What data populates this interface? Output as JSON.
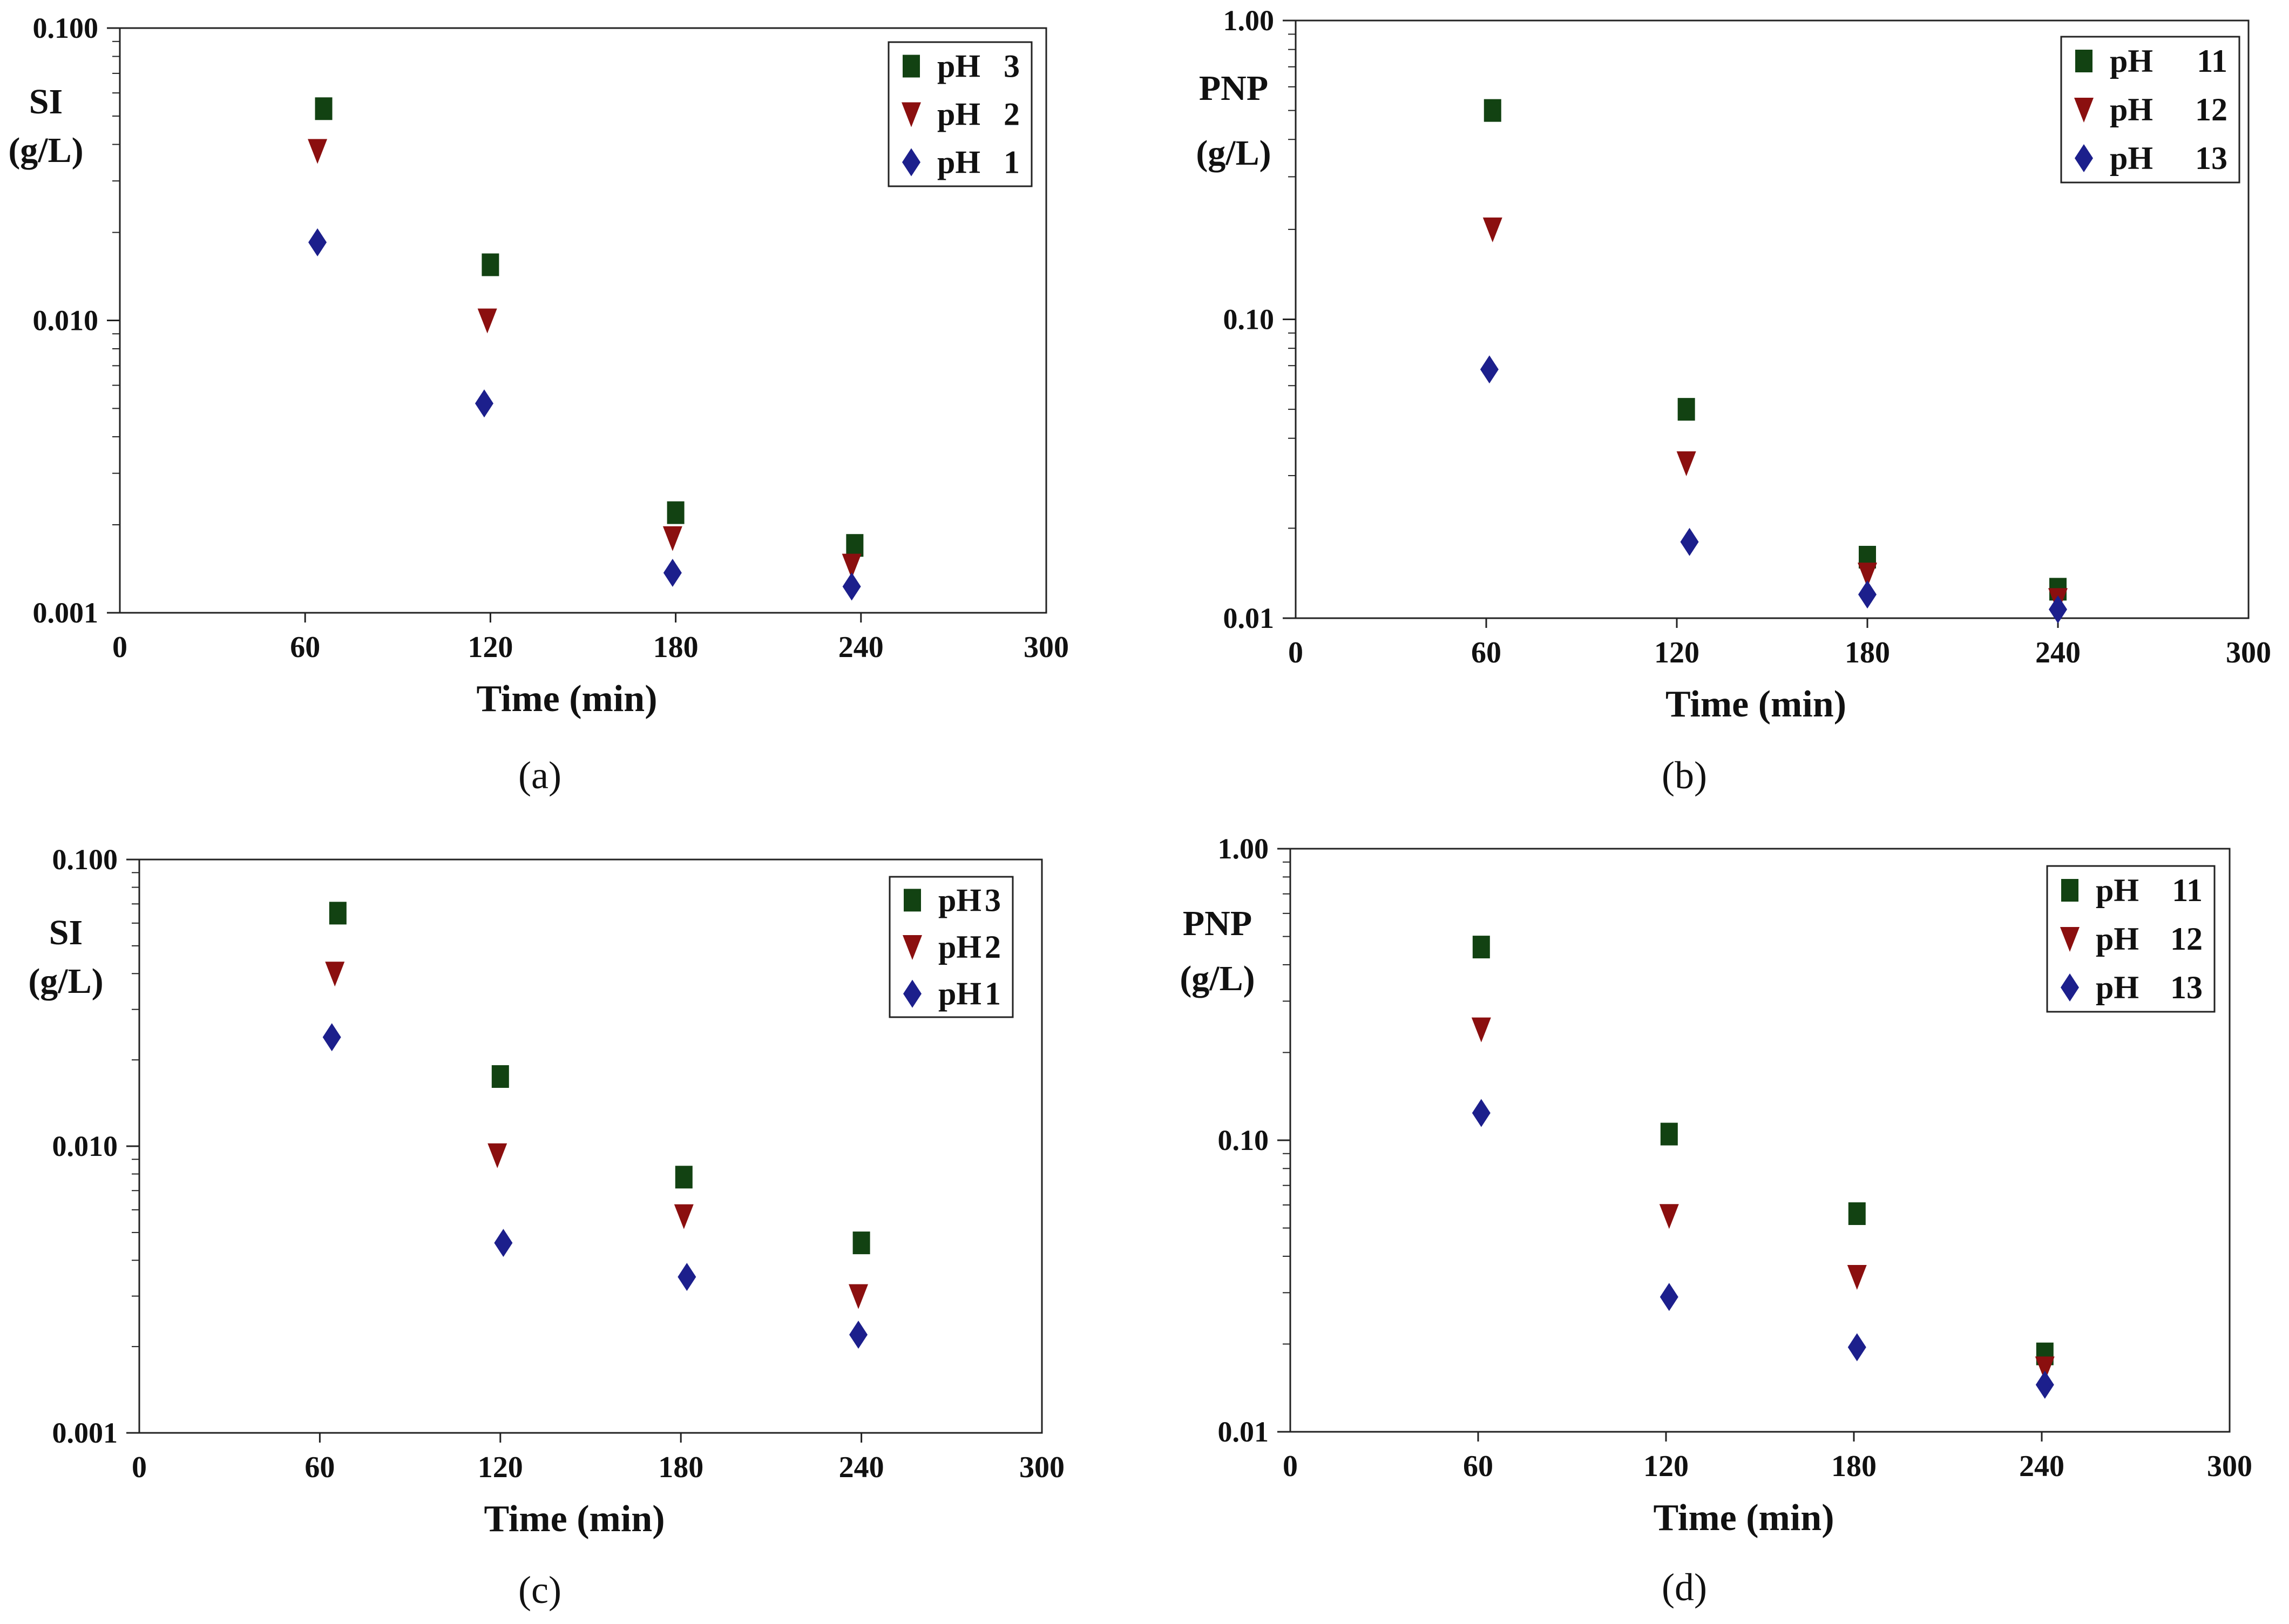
{
  "figure": {
    "captions": [
      "(a)",
      "(b)",
      "(c)",
      "(d)"
    ]
  },
  "colors": {
    "square": "#124212",
    "triangle": "#8b0f0f",
    "diamond": "#1c1f8c"
  },
  "chart_data": [
    {
      "id": "a",
      "type": "scatter",
      "caption": "(a)",
      "xlabel": "Time (min)",
      "ylabel_lines": [
        "SI",
        "(g/L)"
      ],
      "yscale": "log",
      "ylim": [
        0.001,
        0.1
      ],
      "xlim": [
        0,
        300
      ],
      "x_ticks": [
        "0",
        "60",
        "120",
        "180",
        "240",
        "300"
      ],
      "y_ticks": [
        {
          "value": 0.1,
          "label": "0.100"
        },
        {
          "value": 0.01,
          "label": "0.010"
        },
        {
          "value": 0.001,
          "label": "0.001"
        }
      ],
      "legend": [
        {
          "pH": "pH",
          "value": "3",
          "marker": "square"
        },
        {
          "pH": "pH",
          "value": "2",
          "marker": "triangle"
        },
        {
          "pH": "pH",
          "value": "1",
          "marker": "diamond"
        }
      ],
      "series": [
        {
          "name": "pH 3",
          "marker": "square",
          "x": [
            66,
            120,
            180,
            238
          ],
          "y": [
            0.053,
            0.0155,
            0.0022,
            0.0017
          ]
        },
        {
          "name": "pH 2",
          "marker": "triangle",
          "x": [
            64,
            119,
            179,
            237
          ],
          "y": [
            0.038,
            0.01,
            0.0018,
            0.00145
          ]
        },
        {
          "name": "pH 1",
          "marker": "diamond",
          "x": [
            64,
            118,
            179,
            237
          ],
          "y": [
            0.0185,
            0.0052,
            0.00137,
            0.00123
          ]
        }
      ]
    },
    {
      "id": "b",
      "type": "scatter",
      "caption": "(b)",
      "xlabel": "Time (min)",
      "ylabel_lines": [
        "PNP",
        "(g/L)"
      ],
      "yscale": "log",
      "ylim": [
        0.01,
        1.0
      ],
      "xlim": [
        0,
        300
      ],
      "x_ticks": [
        "0",
        "60",
        "120",
        "180",
        "240",
        "300"
      ],
      "y_ticks": [
        {
          "value": 1.0,
          "label": "1.00"
        },
        {
          "value": 0.1,
          "label": "0.10"
        },
        {
          "value": 0.01,
          "label": "0.01"
        }
      ],
      "legend": [
        {
          "pH": "pH",
          "value": "11",
          "marker": "square"
        },
        {
          "pH": "pH",
          "value": "12",
          "marker": "triangle"
        },
        {
          "pH": "pH",
          "value": "13",
          "marker": "diamond"
        }
      ],
      "series": [
        {
          "name": "pH 11",
          "marker": "square",
          "x": [
            62,
            123,
            180,
            240
          ],
          "y": [
            0.5,
            0.05,
            0.016,
            0.0125
          ]
        },
        {
          "name": "pH 12",
          "marker": "triangle",
          "x": [
            62,
            123,
            180,
            240
          ],
          "y": [
            0.2,
            0.033,
            0.014,
            0.0115
          ]
        },
        {
          "name": "pH 13",
          "marker": "diamond",
          "x": [
            61,
            124,
            180,
            240
          ],
          "y": [
            0.068,
            0.018,
            0.012,
            0.0107
          ]
        }
      ]
    },
    {
      "id": "c",
      "type": "scatter",
      "caption": "(c)",
      "xlabel": "Time (min)",
      "ylabel_lines": [
        "SI",
        "(g/L)"
      ],
      "yscale": "log",
      "ylim": [
        0.001,
        0.1
      ],
      "xlim": [
        0,
        300
      ],
      "x_ticks": [
        "0",
        "60",
        "120",
        "180",
        "240",
        "300"
      ],
      "y_ticks": [
        {
          "value": 0.1,
          "label": "0.100"
        },
        {
          "value": 0.01,
          "label": "0.010"
        },
        {
          "value": 0.001,
          "label": "0.001"
        }
      ],
      "legend": [
        {
          "pH": "pH",
          "value": "3",
          "marker": "square"
        },
        {
          "pH": "pH",
          "value": "2",
          "marker": "triangle"
        },
        {
          "pH": "pH",
          "value": "1",
          "marker": "diamond"
        }
      ],
      "series": [
        {
          "name": "pH 3",
          "marker": "square",
          "x": [
            66,
            120,
            181,
            240
          ],
          "y": [
            0.065,
            0.0175,
            0.0078,
            0.0046
          ]
        },
        {
          "name": "pH 2",
          "marker": "triangle",
          "x": [
            65,
            119,
            181,
            239
          ],
          "y": [
            0.04,
            0.0093,
            0.0057,
            0.003
          ]
        },
        {
          "name": "pH 1",
          "marker": "diamond",
          "x": [
            64,
            121,
            182,
            239
          ],
          "y": [
            0.024,
            0.0046,
            0.0035,
            0.0022
          ]
        }
      ]
    },
    {
      "id": "d",
      "type": "scatter",
      "caption": "(d)",
      "xlabel": "Time (min)",
      "ylabel_lines": [
        "PNP",
        "(g/L)"
      ],
      "yscale": "log",
      "ylim": [
        0.01,
        1.0
      ],
      "xlim": [
        0,
        300
      ],
      "x_ticks": [
        "0",
        "60",
        "120",
        "180",
        "240",
        "300"
      ],
      "y_ticks": [
        {
          "value": 1.0,
          "label": "1.00"
        },
        {
          "value": 0.1,
          "label": "0.10"
        },
        {
          "value": 0.01,
          "label": "0.01"
        }
      ],
      "legend": [
        {
          "pH": "pH",
          "value": "11",
          "marker": "square"
        },
        {
          "pH": "pH",
          "value": "12",
          "marker": "triangle"
        },
        {
          "pH": "pH",
          "value": "13",
          "marker": "diamond"
        }
      ],
      "series": [
        {
          "name": "pH 11",
          "marker": "square",
          "x": [
            61,
            121,
            181,
            241
          ],
          "y": [
            0.46,
            0.105,
            0.056,
            0.0185
          ]
        },
        {
          "name": "pH 12",
          "marker": "triangle",
          "x": [
            61,
            121,
            181,
            241
          ],
          "y": [
            0.24,
            0.055,
            0.034,
            0.0165
          ]
        },
        {
          "name": "pH 13",
          "marker": "diamond",
          "x": [
            61,
            121,
            181,
            241
          ],
          "y": [
            0.124,
            0.029,
            0.0195,
            0.0145
          ]
        }
      ]
    }
  ]
}
